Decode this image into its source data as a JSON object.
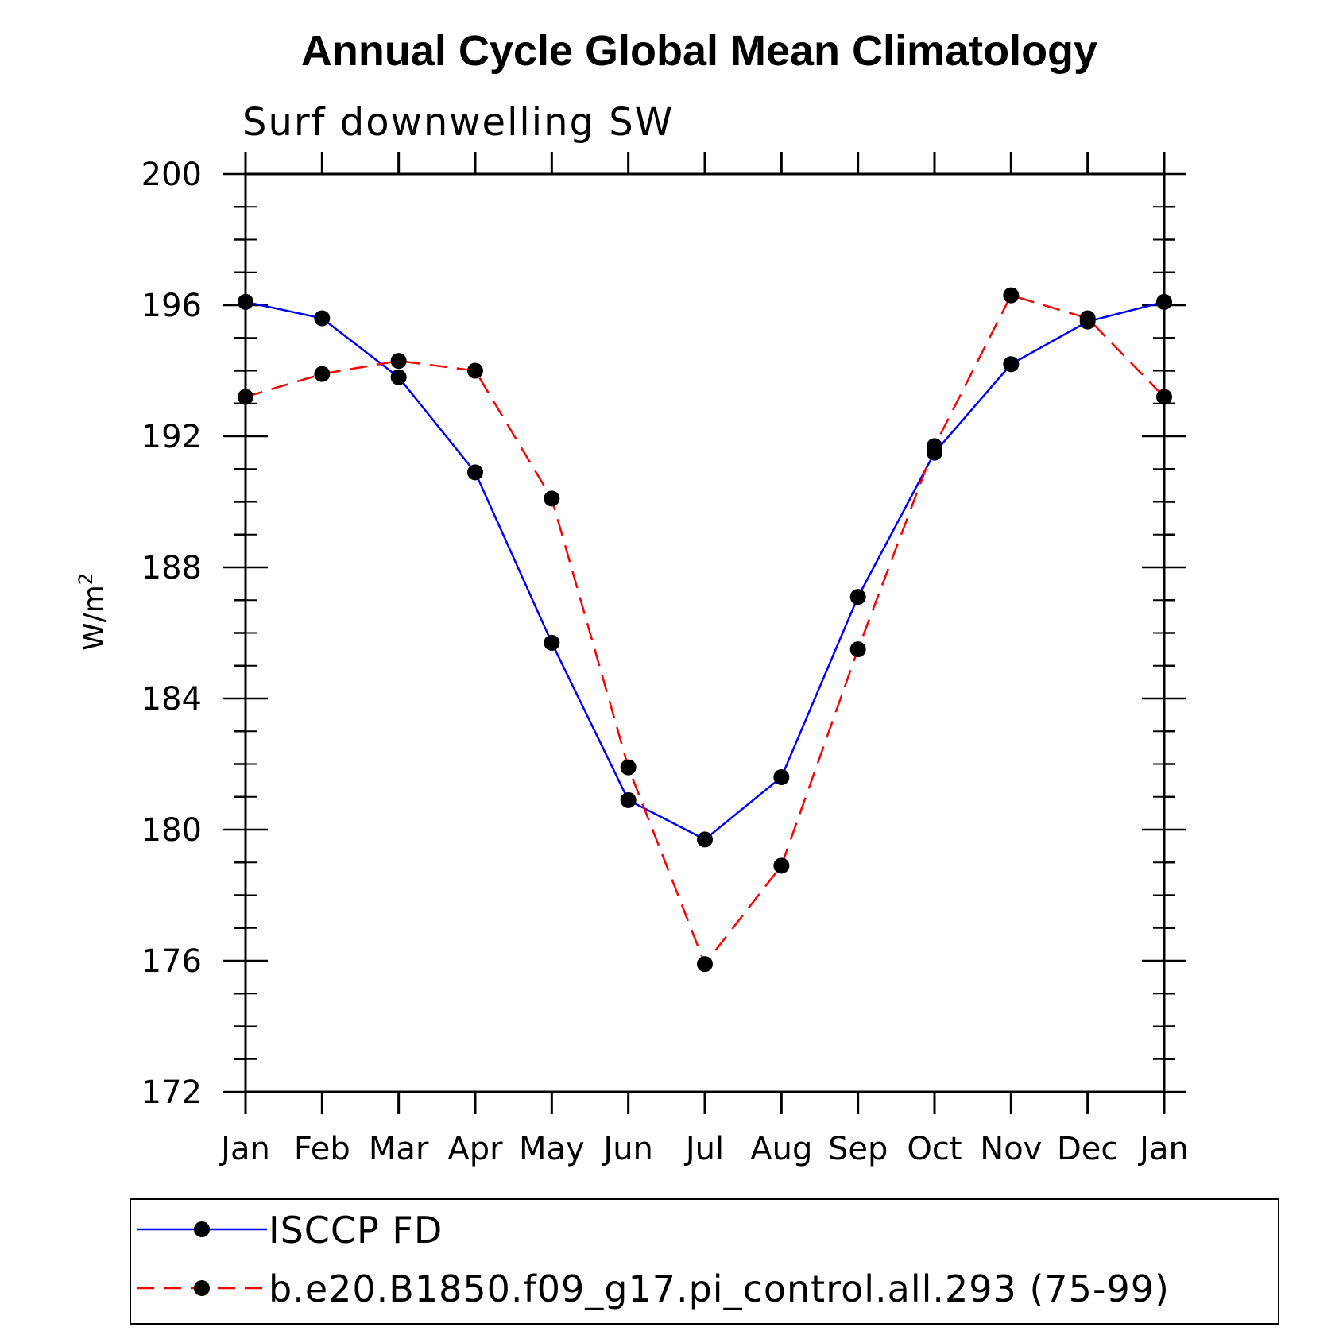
{
  "chart_data": {
    "type": "line",
    "title": "Annual Cycle Global Mean Climatology",
    "subtitle": "Surf downwelling SW",
    "ylabel": "W/m",
    "ylabel_sup": "2",
    "xlabel": "",
    "categories": [
      "Jan",
      "Feb",
      "Mar",
      "Apr",
      "May",
      "Jun",
      "Jul",
      "Aug",
      "Sep",
      "Oct",
      "Nov",
      "Dec",
      "Jan"
    ],
    "ylim": [
      172,
      200
    ],
    "yticks": [
      "172",
      "176",
      "180",
      "184",
      "188",
      "192",
      "196",
      "200"
    ],
    "grid": false,
    "legend_position": "bottom",
    "series": [
      {
        "name": "ISCCP FD",
        "color": "#0000ff",
        "line_style": "solid",
        "marker": "filled-circle",
        "values": [
          196.1,
          195.6,
          193.8,
          190.9,
          185.7,
          180.9,
          179.7,
          181.6,
          187.1,
          191.5,
          194.2,
          195.5,
          196.1
        ]
      },
      {
        "name": "b.e20.B1850.f09_g17.pi_control.all.293 (75-99)",
        "color": "#ff0000",
        "line_style": "dashed",
        "marker": "filled-circle",
        "values": [
          193.2,
          193.9,
          194.3,
          194.0,
          190.1,
          181.9,
          175.9,
          178.9,
          185.5,
          191.7,
          196.3,
          195.6,
          193.2
        ]
      }
    ]
  }
}
